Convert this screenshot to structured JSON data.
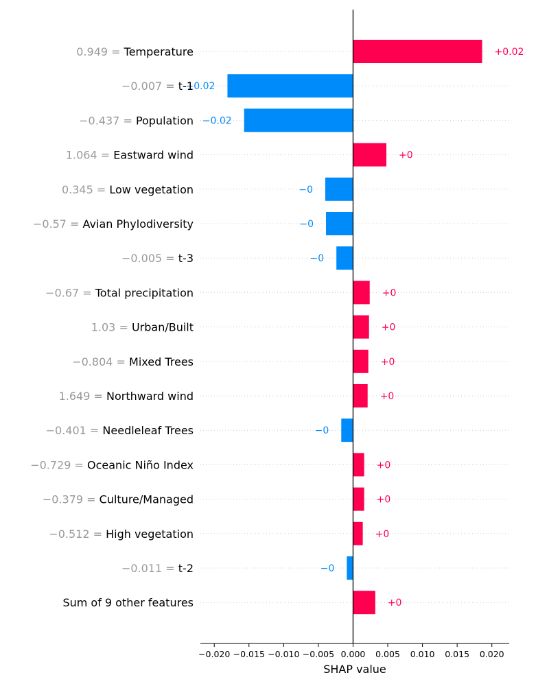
{
  "chart_data": {
    "type": "bar",
    "orientation": "horizontal",
    "xlabel": "SHAP value",
    "xlim": [
      -0.022,
      0.0225
    ],
    "xticks": [
      -0.02,
      -0.015,
      -0.01,
      -0.005,
      0.0,
      0.005,
      0.01,
      0.015,
      0.02
    ],
    "xtick_labels": [
      "−0.020",
      "−0.015",
      "−0.010",
      "−0.005",
      "0.000",
      "0.005",
      "0.010",
      "0.015",
      "0.020"
    ],
    "grid": "horizontal dotted lines per feature",
    "colors": {
      "positive": "#ff0051",
      "negative": "#008bfb",
      "feature_value": "#999999",
      "zero_line": "#000000"
    },
    "features": [
      {
        "value": "0.949",
        "name": "Temperature",
        "shap": 0.0186,
        "label": "+0.02"
      },
      {
        "value": "−0.007",
        "name": "t-1",
        "shap": -0.0181,
        "label": "−0.02"
      },
      {
        "value": "−0.437",
        "name": "Population",
        "shap": -0.0157,
        "label": "−0.02"
      },
      {
        "value": "1.064",
        "name": "Eastward wind",
        "shap": 0.0048,
        "label": "+0"
      },
      {
        "value": "0.345",
        "name": "Low vegetation",
        "shap": -0.004,
        "label": "−0"
      },
      {
        "value": "−0.57",
        "name": "Avian Phylodiversity",
        "shap": -0.0039,
        "label": "−0"
      },
      {
        "value": "−0.005",
        "name": "t-3",
        "shap": -0.0024,
        "label": "−0"
      },
      {
        "value": "−0.67",
        "name": "Total precipitation",
        "shap": 0.0024,
        "label": "+0"
      },
      {
        "value": "1.03",
        "name": "Urban/Built",
        "shap": 0.0023,
        "label": "+0"
      },
      {
        "value": "−0.804",
        "name": "Mixed Trees",
        "shap": 0.0022,
        "label": "+0"
      },
      {
        "value": "1.649",
        "name": "Northward wind",
        "shap": 0.0021,
        "label": "+0"
      },
      {
        "value": "−0.401",
        "name": "Needleleaf Trees",
        "shap": -0.0017,
        "label": "−0"
      },
      {
        "value": "−0.729",
        "name": "Oceanic Niño Index",
        "shap": 0.0016,
        "label": "+0"
      },
      {
        "value": "−0.379",
        "name": "Culture/Managed",
        "shap": 0.0016,
        "label": "+0"
      },
      {
        "value": "−0.512",
        "name": "High vegetation",
        "shap": 0.0014,
        "label": "+0"
      },
      {
        "value": "−0.011",
        "name": "t-2",
        "shap": -0.0009,
        "label": "−0"
      },
      {
        "value": "",
        "name": "Sum of 9 other features",
        "shap": 0.0032,
        "label": "+0"
      }
    ]
  }
}
